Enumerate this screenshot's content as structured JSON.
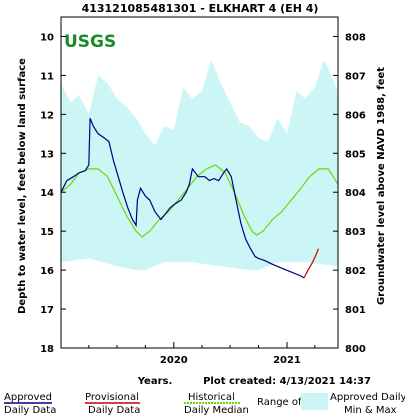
{
  "chart_data": {
    "type": "line",
    "title": "413121085481301 - ELKHART 4 (EH 4)",
    "logo_text": "USGS",
    "ylabel_left": "Depth to water level, feet below land surface",
    "ylabel_right": "Groundwater level above NAVD 1988, feet",
    "xlabel": "Years.",
    "plot_created_label": "Plot created: 4/13/2021 14:37",
    "x_ticks": [
      "2020",
      "2021"
    ],
    "y_left_ticks": [
      "10",
      "11",
      "12",
      "13",
      "14",
      "15",
      "16",
      "17",
      "18"
    ],
    "y_right_ticks": [
      "800",
      "801",
      "802",
      "803",
      "804",
      "805",
      "806",
      "807",
      "808"
    ],
    "y_left_range": [
      18,
      9.5
    ],
    "x_range": [
      "2019-01-01",
      "2021-06-15"
    ],
    "colors": {
      "approved": "#000080",
      "provisional": "#cc0000",
      "median": "#66dd00",
      "range_fill": "#ccf5f5"
    },
    "range_upper": [
      [
        "2019-01-01",
        11.2
      ],
      [
        "2019-02-01",
        11.7
      ],
      [
        "2019-03-01",
        11.5
      ],
      [
        "2019-04-01",
        12.0
      ],
      [
        "2019-05-01",
        11.0
      ],
      [
        "2019-06-01",
        11.2
      ],
      [
        "2019-07-01",
        11.6
      ],
      [
        "2019-08-01",
        11.8
      ],
      [
        "2019-09-01",
        12.1
      ],
      [
        "2019-10-01",
        12.5
      ],
      [
        "2019-11-01",
        12.8
      ],
      [
        "2019-12-01",
        12.3
      ],
      [
        "2020-01-01",
        12.4
      ],
      [
        "2020-02-01",
        11.3
      ],
      [
        "2020-03-01",
        11.6
      ],
      [
        "2020-04-01",
        11.4
      ],
      [
        "2020-05-01",
        10.6
      ],
      [
        "2020-06-01",
        11.2
      ],
      [
        "2020-07-01",
        11.7
      ],
      [
        "2020-08-01",
        12.2
      ],
      [
        "2020-09-01",
        12.3
      ],
      [
        "2020-10-01",
        12.6
      ],
      [
        "2020-11-01",
        12.7
      ],
      [
        "2020-12-01",
        12.1
      ],
      [
        "2021-01-01",
        12.5
      ],
      [
        "2021-02-01",
        11.4
      ],
      [
        "2021-03-01",
        11.6
      ],
      [
        "2021-04-01",
        11.3
      ],
      [
        "2021-05-01",
        10.6
      ],
      [
        "2021-06-15",
        11.4
      ]
    ],
    "range_lower": [
      [
        "2019-01-01",
        15.8
      ],
      [
        "2019-04-01",
        15.7
      ],
      [
        "2019-07-01",
        15.9
      ],
      [
        "2019-09-01",
        16.0
      ],
      [
        "2019-10-01",
        16.0
      ],
      [
        "2019-12-01",
        15.8
      ],
      [
        "2020-03-01",
        15.8
      ],
      [
        "2020-06-01",
        15.9
      ],
      [
        "2020-09-01",
        16.0
      ],
      [
        "2020-10-01",
        16.0
      ],
      [
        "2020-12-01",
        15.8
      ],
      [
        "2021-03-01",
        15.8
      ],
      [
        "2021-06-15",
        15.9
      ]
    ],
    "median": [
      [
        "2019-01-01",
        14.0
      ],
      [
        "2019-02-01",
        13.8
      ],
      [
        "2019-03-01",
        13.5
      ],
      [
        "2019-04-01",
        13.4
      ],
      [
        "2019-05-01",
        13.4
      ],
      [
        "2019-06-01",
        13.6
      ],
      [
        "2019-07-01",
        14.1
      ],
      [
        "2019-08-01",
        14.6
      ],
      [
        "2019-09-01",
        15.0
      ],
      [
        "2019-09-20",
        15.15
      ],
      [
        "2019-10-15",
        15.0
      ],
      [
        "2019-11-15",
        14.7
      ],
      [
        "2019-12-15",
        14.5
      ],
      [
        "2020-01-15",
        14.2
      ],
      [
        "2020-02-15",
        13.9
      ],
      [
        "2020-03-15",
        13.6
      ],
      [
        "2020-04-15",
        13.4
      ],
      [
        "2020-05-15",
        13.3
      ],
      [
        "2020-06-15",
        13.5
      ],
      [
        "2020-07-15",
        14.0
      ],
      [
        "2020-08-15",
        14.6
      ],
      [
        "2020-09-10",
        15.0
      ],
      [
        "2020-09-25",
        15.1
      ],
      [
        "2020-10-15",
        15.0
      ],
      [
        "2020-11-15",
        14.7
      ],
      [
        "2020-12-15",
        14.5
      ],
      [
        "2021-01-15",
        14.2
      ],
      [
        "2021-02-15",
        13.9
      ],
      [
        "2021-03-15",
        13.6
      ],
      [
        "2021-04-15",
        13.4
      ],
      [
        "2021-05-15",
        13.4
      ],
      [
        "2021-06-15",
        13.8
      ]
    ],
    "approved": [
      [
        "2019-01-01",
        14.0
      ],
      [
        "2019-01-20",
        13.7
      ],
      [
        "2019-02-10",
        13.6
      ],
      [
        "2019-03-01",
        13.5
      ],
      [
        "2019-03-20",
        13.45
      ],
      [
        "2019-04-01",
        13.3
      ],
      [
        "2019-04-05",
        12.1
      ],
      [
        "2019-04-15",
        12.3
      ],
      [
        "2019-05-01",
        12.5
      ],
      [
        "2019-05-20",
        12.6
      ],
      [
        "2019-06-05",
        12.7
      ],
      [
        "2019-06-20",
        13.2
      ],
      [
        "2019-07-05",
        13.6
      ],
      [
        "2019-07-20",
        14.0
      ],
      [
        "2019-08-05",
        14.4
      ],
      [
        "2019-08-20",
        14.7
      ],
      [
        "2019-09-01",
        14.85
      ],
      [
        "2019-09-05",
        14.2
      ],
      [
        "2019-09-15",
        13.9
      ],
      [
        "2019-10-01",
        14.1
      ],
      [
        "2019-10-15",
        14.2
      ],
      [
        "2019-11-01",
        14.5
      ],
      [
        "2019-11-20",
        14.7
      ],
      [
        "2019-12-05",
        14.55
      ],
      [
        "2019-12-20",
        14.4
      ],
      [
        "2020-01-05",
        14.3
      ],
      [
        "2020-01-25",
        14.2
      ],
      [
        "2020-02-10",
        14.0
      ],
      [
        "2020-02-20",
        13.8
      ],
      [
        "2020-03-01",
        13.4
      ],
      [
        "2020-03-20",
        13.6
      ],
      [
        "2020-04-10",
        13.6
      ],
      [
        "2020-04-25",
        13.7
      ],
      [
        "2020-05-10",
        13.65
      ],
      [
        "2020-05-25",
        13.7
      ],
      [
        "2020-06-10",
        13.5
      ],
      [
        "2020-06-20",
        13.4
      ],
      [
        "2020-07-05",
        13.6
      ],
      [
        "2020-07-20",
        14.2
      ],
      [
        "2020-08-05",
        14.8
      ],
      [
        "2020-08-20",
        15.2
      ],
      [
        "2020-09-05",
        15.45
      ],
      [
        "2020-09-20",
        15.65
      ],
      [
        "2020-10-01",
        15.7
      ],
      [
        "2020-10-20",
        15.75
      ],
      [
        "2020-11-15",
        15.85
      ],
      [
        "2020-12-15",
        15.95
      ],
      [
        "2021-01-15",
        16.05
      ],
      [
        "2021-02-15",
        16.15
      ],
      [
        "2021-02-25",
        16.2
      ]
    ],
    "provisional": [
      [
        "2021-02-25",
        16.2
      ],
      [
        "2021-03-10",
        16.0
      ],
      [
        "2021-03-25",
        15.8
      ],
      [
        "2021-04-05",
        15.6
      ],
      [
        "2021-04-13",
        15.45
      ]
    ]
  },
  "legend": {
    "approved_line1": "Approved",
    "approved_line2": "Daily Data",
    "provisional_line1": "Provisional",
    "provisional_line2": "Daily Data",
    "historical_line1": "Historical",
    "historical_line2": "Daily Median",
    "range_label": "Range of",
    "range_box_line1": "Approved Daily",
    "range_box_line2": "Min & Max"
  }
}
